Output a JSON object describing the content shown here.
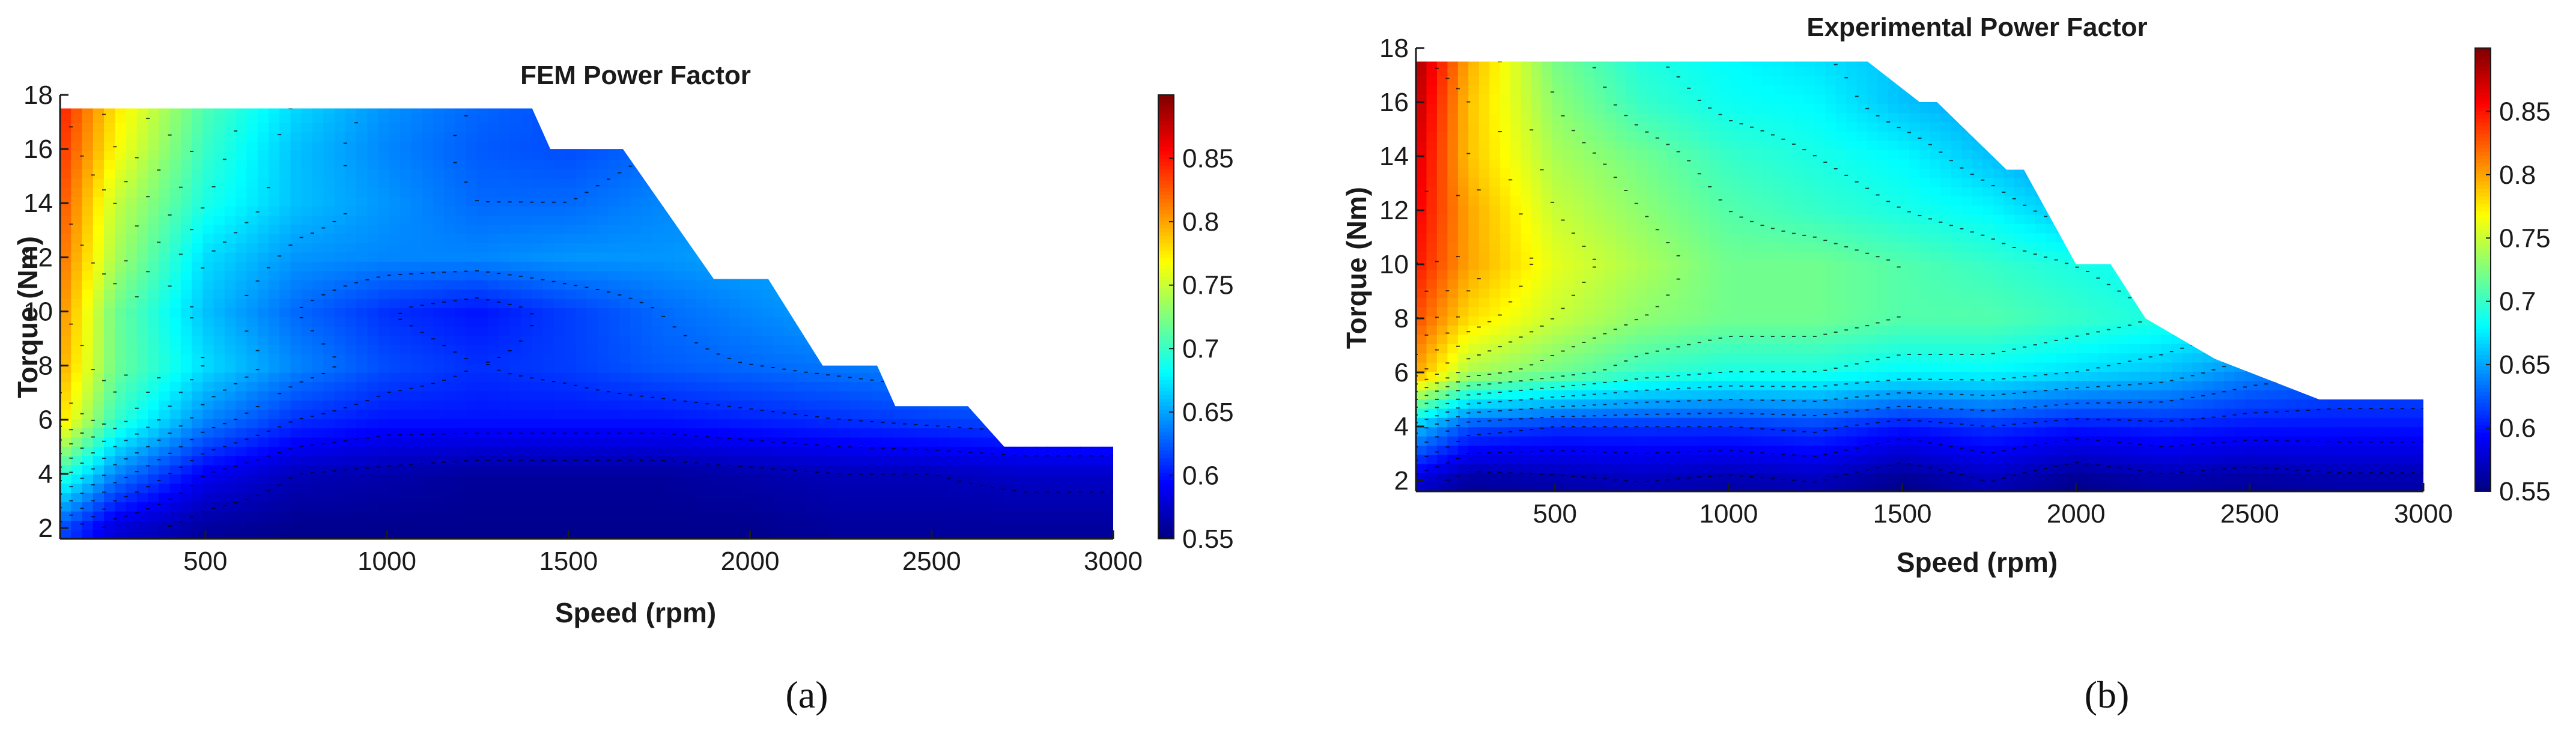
{
  "colors": {
    "jet_stops": [
      "#00007f",
      "#0000ff",
      "#007fff",
      "#00ffff",
      "#7fff7f",
      "#ffff00",
      "#ff7f00",
      "#ff0000",
      "#7f0000"
    ],
    "axis": "#1a1a1a",
    "contour": "#000000"
  },
  "chart_data": [
    {
      "type": "heatmap",
      "caption": "(a)",
      "title": "FEM Power Factor",
      "xlabel": "Speed (rpm)",
      "ylabel": "Torque (Nm)",
      "xlim": [
        100,
        3000
      ],
      "ylim": [
        1.6,
        18
      ],
      "xticks": [
        "500",
        "1000",
        "1500",
        "2000",
        "2500",
        "3000"
      ],
      "yticks": [
        "2",
        "4",
        "6",
        "8",
        "10",
        "12",
        "14",
        "16",
        "18"
      ],
      "colorbar": {
        "range": [
          0.55,
          0.9
        ],
        "ticks": [
          "0.55",
          "0.6",
          "0.65",
          "0.7",
          "0.75",
          "0.8",
          "0.85"
        ]
      },
      "grid": false,
      "operating_envelope": {
        "speed": [
          100,
          1400,
          1450,
          1650,
          1900,
          2050,
          2200,
          2350,
          2400,
          2600,
          2700,
          3000
        ],
        "max_torque": [
          17.5,
          17.5,
          16.0,
          16.0,
          11.2,
          11.2,
          8.0,
          8.0,
          6.5,
          6.5,
          5.0,
          5.0
        ]
      },
      "x": [
        100,
        250,
        500,
        750,
        1000,
        1250,
        1500,
        1750,
        2000,
        2250,
        2500,
        2750,
        3000
      ],
      "y": [
        2,
        4,
        6,
        8,
        10,
        12,
        14,
        16,
        18
      ],
      "z": [
        [
          0.62,
          0.58,
          0.56,
          0.555,
          0.555,
          0.555,
          0.555,
          0.555,
          0.555,
          0.56,
          0.56,
          0.56,
          0.56
        ],
        [
          0.7,
          0.64,
          0.59,
          0.57,
          0.565,
          0.56,
          0.56,
          0.56,
          0.565,
          0.57,
          0.57,
          0.575,
          0.575
        ],
        [
          0.78,
          0.7,
          0.64,
          0.61,
          0.6,
          0.6,
          0.6,
          0.6,
          0.605,
          0.61,
          0.615,
          0.62,
          0.62
        ],
        [
          0.8,
          0.72,
          0.67,
          0.64,
          0.62,
          0.61,
          0.615,
          0.625,
          0.63,
          0.635,
          0.64,
          0.64,
          0.64
        ],
        [
          0.81,
          0.72,
          0.66,
          0.63,
          0.61,
          0.6,
          0.615,
          0.63,
          0.64,
          0.65,
          0.65,
          0.65,
          0.65
        ],
        [
          0.82,
          0.74,
          0.67,
          0.645,
          0.64,
          0.64,
          0.645,
          0.645,
          0.65,
          0.65,
          0.65,
          0.65,
          0.65
        ],
        [
          0.83,
          0.75,
          0.69,
          0.66,
          0.645,
          0.63,
          0.63,
          0.64,
          0.645,
          0.65,
          0.65,
          0.65,
          0.65
        ],
        [
          0.84,
          0.77,
          0.7,
          0.66,
          0.64,
          0.625,
          0.62,
          0.63,
          0.64,
          0.645,
          0.65,
          0.65,
          0.65
        ],
        [
          0.85,
          0.78,
          0.71,
          0.67,
          0.645,
          0.63,
          0.62,
          0.63,
          0.64,
          0.645,
          0.65,
          0.65,
          0.65
        ]
      ]
    },
    {
      "type": "heatmap",
      "caption": "(b)",
      "title": "Experimental Power Factor",
      "xlabel": "Speed (rpm)",
      "ylabel": "Torque (Nm)",
      "xlim": [
        100,
        3000
      ],
      "ylim": [
        1.6,
        18
      ],
      "xticks": [
        "500",
        "1000",
        "1500",
        "2000",
        "2500",
        "3000"
      ],
      "yticks": [
        "2",
        "4",
        "6",
        "8",
        "10",
        "12",
        "14",
        "16",
        "18"
      ],
      "colorbar": {
        "range": [
          0.55,
          0.9
        ],
        "ticks": [
          "0.55",
          "0.6",
          "0.65",
          "0.7",
          "0.75",
          "0.8",
          "0.85"
        ]
      },
      "grid": false,
      "operating_envelope": {
        "speed": [
          100,
          1400,
          1550,
          1600,
          1800,
          1850,
          2000,
          2100,
          2200,
          2400,
          2700,
          3000
        ],
        "max_torque": [
          17.5,
          17.5,
          16.0,
          16.0,
          13.5,
          13.5,
          10.0,
          10.0,
          8.0,
          6.5,
          5.0,
          5.0
        ]
      },
      "x": [
        100,
        250,
        500,
        750,
        1000,
        1250,
        1500,
        1750,
        2000,
        2250,
        2500,
        2750,
        3000
      ],
      "y": [
        2,
        4,
        6,
        8,
        10,
        12,
        14,
        16,
        18
      ],
      "z": [
        [
          0.58,
          0.56,
          0.565,
          0.57,
          0.565,
          0.57,
          0.555,
          0.57,
          0.555,
          0.565,
          0.56,
          0.565,
          0.565
        ],
        [
          0.66,
          0.62,
          0.61,
          0.61,
          0.61,
          0.615,
          0.6,
          0.61,
          0.6,
          0.605,
          0.6,
          0.6,
          0.6
        ],
        [
          0.8,
          0.74,
          0.72,
          0.7,
          0.69,
          0.69,
          0.68,
          0.68,
          0.67,
          0.66,
          0.64,
          0.63,
          0.63
        ],
        [
          0.83,
          0.78,
          0.75,
          0.73,
          0.72,
          0.72,
          0.71,
          0.71,
          0.7,
          0.69,
          0.68,
          0.67,
          0.67
        ],
        [
          0.85,
          0.8,
          0.76,
          0.74,
          0.72,
          0.72,
          0.71,
          0.7,
          0.69,
          0.68,
          0.67,
          0.67,
          0.67
        ],
        [
          0.86,
          0.8,
          0.75,
          0.73,
          0.71,
          0.7,
          0.69,
          0.68,
          0.66,
          0.65,
          0.65,
          0.65,
          0.65
        ],
        [
          0.87,
          0.79,
          0.74,
          0.72,
          0.7,
          0.69,
          0.68,
          0.66,
          0.64,
          0.64,
          0.64,
          0.64,
          0.64
        ],
        [
          0.88,
          0.79,
          0.73,
          0.7,
          0.685,
          0.68,
          0.66,
          0.65,
          0.64,
          0.64,
          0.64,
          0.64,
          0.64
        ],
        [
          0.89,
          0.8,
          0.72,
          0.69,
          0.68,
          0.67,
          0.66,
          0.65,
          0.64,
          0.64,
          0.64,
          0.64,
          0.64
        ]
      ]
    }
  ]
}
